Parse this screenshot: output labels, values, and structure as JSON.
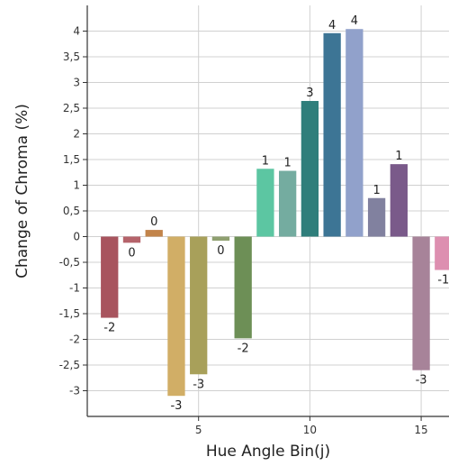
{
  "chart_data": {
    "type": "bar",
    "title": "",
    "xlabel": "Hue Angle Bin(j)",
    "ylabel": "Change of Chroma (%)",
    "xlim": [
      0,
      16.25
    ],
    "ylim": [
      -3.5,
      4.5
    ],
    "x": [
      1,
      2,
      3,
      4,
      5,
      6,
      7,
      8,
      9,
      10,
      11,
      12,
      13,
      14,
      15,
      16
    ],
    "values": [
      -1.58,
      -0.12,
      0.13,
      -3.1,
      -2.68,
      -0.08,
      -1.98,
      1.32,
      1.28,
      2.64,
      3.96,
      4.04,
      0.75,
      1.41,
      -2.6,
      -0.65
    ],
    "data_labels": [
      "-2",
      "0",
      "0",
      "-3",
      "-3",
      "0",
      "-2",
      "1",
      "1",
      "3",
      "4",
      "4",
      "1",
      "1",
      "-3",
      "-1"
    ],
    "colors": [
      "#a8545e",
      "#b5636a",
      "#c2844a",
      "#d1ae66",
      "#a8a05a",
      "#8fa070",
      "#6d8f56",
      "#5cc6a2",
      "#74aca0",
      "#2f7e7b",
      "#3d7595",
      "#91a1cb",
      "#81819f",
      "#7a5a8a",
      "#a78399",
      "#dd8fb0"
    ],
    "x_ticks": [
      "5",
      "10",
      "15"
    ],
    "x_tick_values": [
      5,
      10,
      15
    ],
    "y_ticks": [
      "-3",
      "-2,5",
      "-2",
      "-1,5",
      "-1",
      "-0,5",
      "0",
      "0,5",
      "1",
      "1,5",
      "2",
      "2,5",
      "3",
      "3,5",
      "4"
    ],
    "y_tick_values": [
      -3,
      -2.5,
      -2,
      -1.5,
      -1,
      -0.5,
      0,
      0.5,
      1,
      1.5,
      2,
      2.5,
      3,
      3.5,
      4
    ],
    "grid": true
  }
}
